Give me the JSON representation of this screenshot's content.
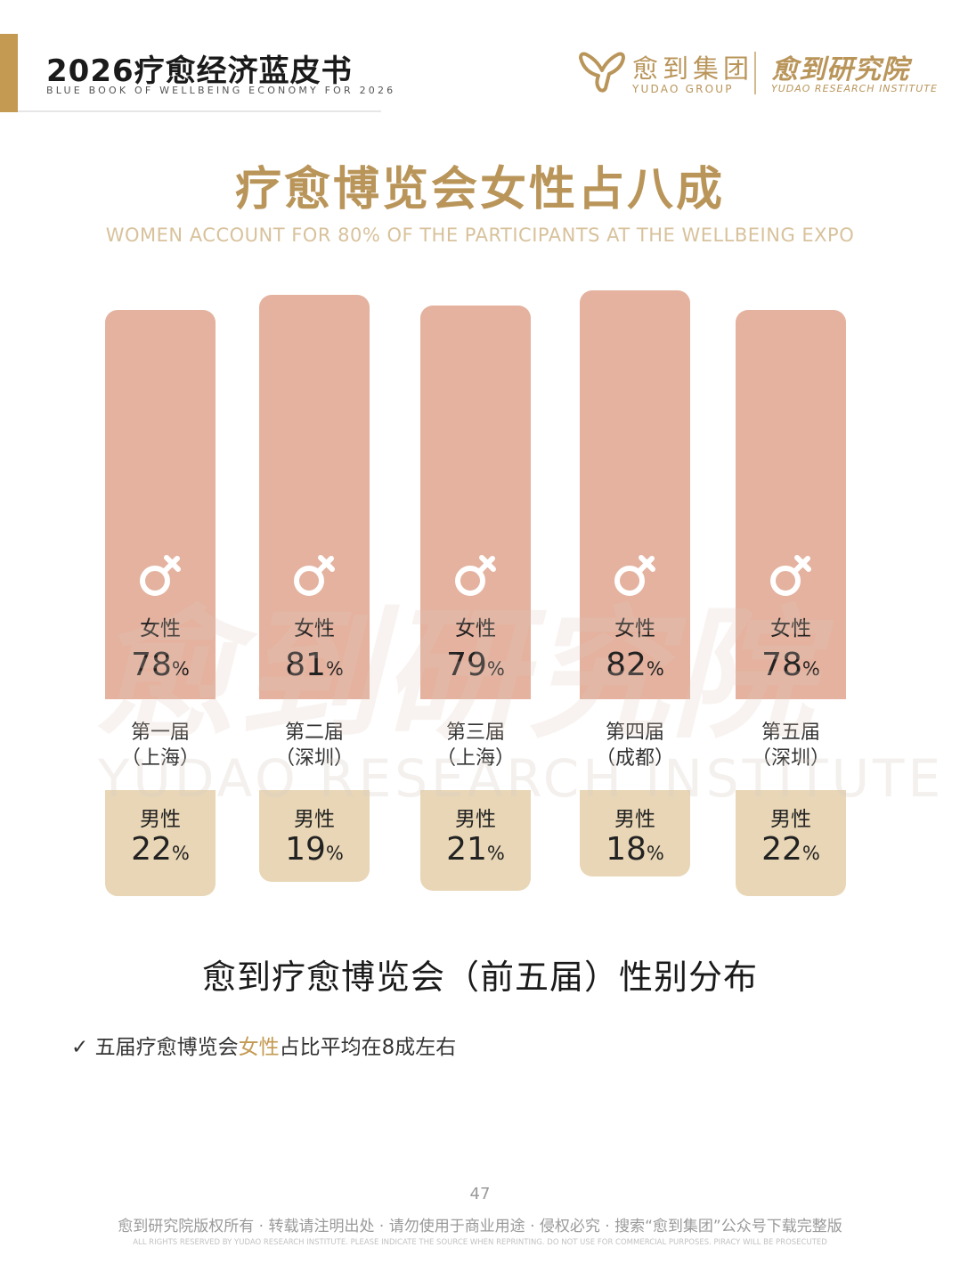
{
  "header": {
    "title": "2026疗愈经济蓝皮书",
    "subtitle": "BLUE BOOK OF WELLBEING ECONOMY FOR 2026",
    "brand_cn": "愈到集团",
    "brand_en": "YUDAO GROUP",
    "institute_cn": "愈到研究院",
    "institute_en": "YUDAO RESEARCH INSTITUTE",
    "accent_color": "#c49a52"
  },
  "watermark": {
    "cn": "愈到研究院",
    "en": "YUDAO RESEARCH INSTITUTE"
  },
  "chart_data": {
    "type": "bar",
    "title": "疗愈博览会女性占八成",
    "subtitle": "WOMEN ACCOUNT FOR 80% OF THE PARTICIPANTS AT THE WELLBEING EXPO",
    "caption": "愈到疗愈博览会（前五届）性别分布",
    "categories": [
      {
        "edition": "第一届",
        "city": "（上海）"
      },
      {
        "edition": "第二届",
        "city": "（深圳）"
      },
      {
        "edition": "第三届",
        "city": "（上海）"
      },
      {
        "edition": "第四届",
        "city": "（成都）"
      },
      {
        "edition": "第五届",
        "city": "（深圳）"
      }
    ],
    "series": [
      {
        "name": "女性",
        "values": [
          78,
          81,
          79,
          82,
          78
        ],
        "color": "#e4b29f",
        "icon": "female-icon"
      },
      {
        "name": "男性",
        "values": [
          22,
          19,
          21,
          18,
          22
        ],
        "color": "#e8d6b6"
      }
    ],
    "unit": "%"
  },
  "note": {
    "check_icon": "check-icon",
    "prefix": "五届疗愈博览会",
    "highlight": "女性",
    "suffix": "占比平均在8成左右"
  },
  "footer": {
    "page_number": "47",
    "copyright_cn": "愈到研究院版权所有 · 转载请注明出处 · 请勿使用于商业用途 · 侵权必究 · 搜索“愈到集团”公众号下载完整版",
    "copyright_en": "ALL RIGHTS RESERVED BY YUDAO RESEARCH INSTITUTE. PLEASE INDICATE THE SOURCE WHEN REPRINTING. DO NOT USE FOR COMMERCIAL PURPOSES. PIRACY WILL BE PROSECUTED"
  }
}
